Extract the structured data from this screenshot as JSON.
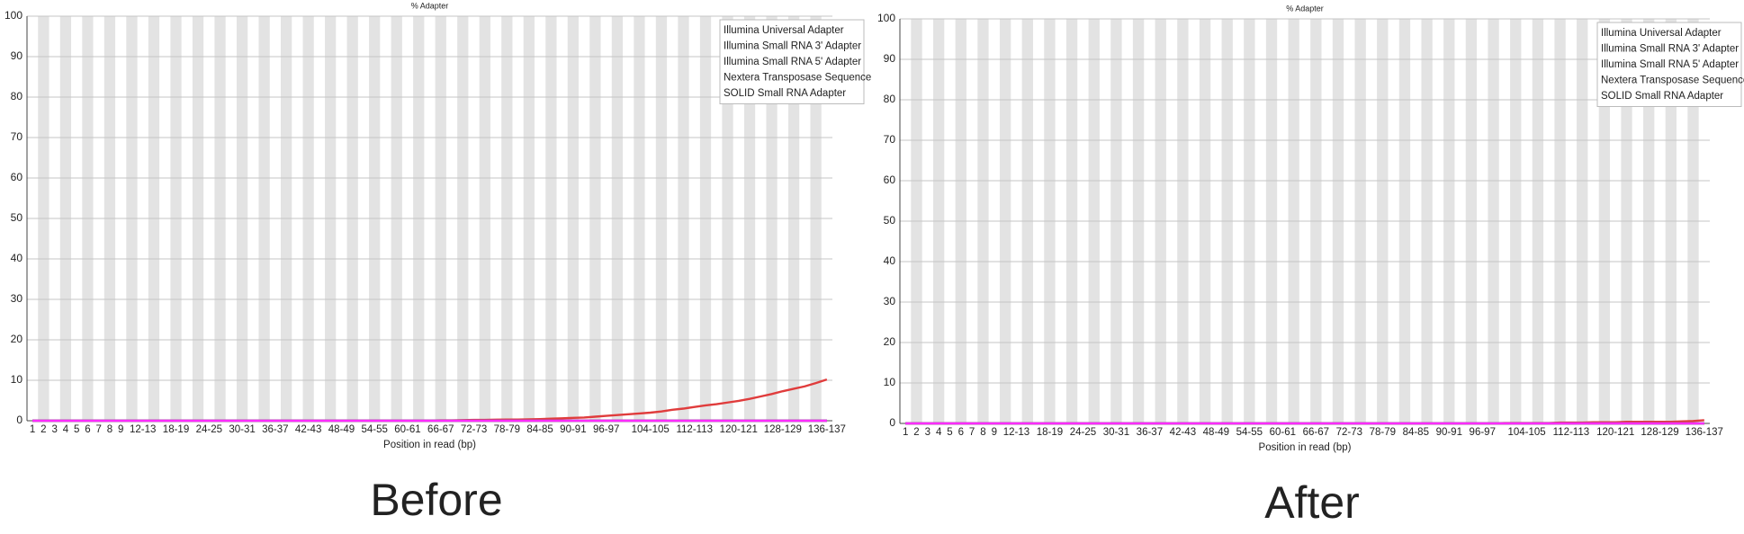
{
  "chart_data": [
    {
      "type": "line",
      "title": "% Adapter",
      "caption": "Before",
      "xlabel": "Position in read (bp)",
      "categories": [
        "1",
        "2",
        "3",
        "4",
        "5",
        "6",
        "7",
        "8",
        "9",
        null,
        "12-13",
        null,
        null,
        "18-19",
        null,
        null,
        "24-25",
        null,
        null,
        "30-31",
        null,
        null,
        "36-37",
        null,
        null,
        "42-43",
        null,
        null,
        "48-49",
        null,
        null,
        "54-55",
        null,
        null,
        "60-61",
        null,
        null,
        "66-67",
        null,
        null,
        "72-73",
        null,
        null,
        "78-79",
        null,
        null,
        "84-85",
        null,
        null,
        "90-91",
        null,
        null,
        "96-97",
        null,
        null,
        null,
        "104-105",
        null,
        null,
        null,
        "112-113",
        null,
        null,
        null,
        "120-121",
        null,
        null,
        null,
        "128-129",
        null,
        null,
        null,
        "136-137"
      ],
      "ylim": [
        0,
        100
      ],
      "yticks": [
        0,
        10,
        20,
        30,
        40,
        50,
        60,
        70,
        80,
        90,
        100
      ],
      "grid": true,
      "legend": "upper right",
      "series": [
        {
          "name": "Illumina Universal Adapter",
          "color": "#e03c3c",
          "values": [
            0,
            0,
            0,
            0,
            0,
            0,
            0,
            0,
            0,
            0,
            0,
            0,
            0,
            0,
            0,
            0,
            0,
            0,
            0,
            0,
            0,
            0,
            0,
            0,
            0,
            0,
            0,
            0,
            0,
            0,
            0,
            0,
            0,
            0,
            0,
            0,
            0.05,
            0.1,
            0.1,
            0.15,
            0.2,
            0.2,
            0.25,
            0.3,
            0.3,
            0.35,
            0.4,
            0.5,
            0.6,
            0.7,
            0.8,
            1.0,
            1.2,
            1.4,
            1.6,
            1.8,
            2.0,
            2.3,
            2.7,
            3.0,
            3.4,
            3.8,
            4.1,
            4.5,
            4.9,
            5.4,
            6.0,
            6.6,
            7.3,
            7.9,
            8.5,
            9.3,
            10.2
          ]
        },
        {
          "name": "Illumina Small RNA 3' Adapter",
          "color": "#1a1aff",
          "values": [
            0,
            0,
            0,
            0,
            0,
            0,
            0,
            0,
            0,
            0,
            0,
            0,
            0,
            0,
            0,
            0,
            0,
            0,
            0,
            0,
            0,
            0,
            0,
            0,
            0,
            0,
            0,
            0,
            0,
            0,
            0,
            0,
            0,
            0,
            0,
            0,
            0,
            0,
            0,
            0,
            0,
            0,
            0,
            0,
            0,
            0,
            0,
            0,
            0,
            0,
            0,
            0,
            0,
            0,
            0,
            0,
            0,
            0,
            0,
            0,
            0,
            0,
            0,
            0,
            0,
            0,
            0,
            0,
            0,
            0,
            0,
            0,
            0
          ]
        },
        {
          "name": "Illumina Small RNA 5' Adapter",
          "color": "#7ccf3c",
          "values": [
            0,
            0,
            0,
            0,
            0,
            0,
            0,
            0,
            0,
            0,
            0,
            0,
            0,
            0,
            0,
            0,
            0,
            0,
            0,
            0,
            0,
            0,
            0,
            0,
            0,
            0,
            0,
            0,
            0,
            0,
            0,
            0,
            0,
            0,
            0,
            0,
            0,
            0,
            0,
            0,
            0,
            0,
            0,
            0,
            0,
            0,
            0,
            0,
            0,
            0,
            0,
            0,
            0,
            0,
            0,
            0,
            0,
            0,
            0,
            0,
            0,
            0,
            0,
            0,
            0,
            0,
            0,
            0,
            0,
            0,
            0,
            0,
            0
          ]
        },
        {
          "name": "Nextera Transposase Sequence",
          "color": "#555555",
          "values": [
            0,
            0,
            0,
            0,
            0,
            0,
            0,
            0,
            0,
            0,
            0,
            0,
            0,
            0,
            0,
            0,
            0,
            0,
            0,
            0,
            0,
            0,
            0,
            0,
            0,
            0,
            0,
            0,
            0,
            0,
            0,
            0,
            0,
            0,
            0,
            0,
            0,
            0,
            0,
            0,
            0,
            0,
            0,
            0,
            0,
            0,
            0,
            0,
            0,
            0,
            0,
            0,
            0,
            0,
            0,
            0,
            0,
            0,
            0,
            0,
            0,
            0,
            0,
            0,
            0,
            0,
            0,
            0,
            0,
            0,
            0,
            0,
            0
          ]
        },
        {
          "name": "SOLID Small RNA Adapter",
          "color": "#ff2cff",
          "values": [
            0,
            0,
            0,
            0,
            0,
            0,
            0,
            0,
            0,
            0,
            0,
            0,
            0,
            0,
            0,
            0,
            0,
            0,
            0,
            0,
            0,
            0,
            0,
            0,
            0,
            0,
            0,
            0,
            0,
            0,
            0,
            0,
            0,
            0,
            0,
            0,
            0,
            0,
            0,
            0,
            0,
            0,
            0,
            0,
            0,
            0,
            0,
            0,
            0,
            0,
            0,
            0,
            0,
            0,
            0,
            0,
            0,
            0,
            0,
            0,
            0,
            0,
            0,
            0,
            0,
            0,
            0,
            0,
            0,
            0,
            0,
            0,
            0
          ]
        }
      ]
    },
    {
      "type": "line",
      "title": "% Adapter",
      "caption": "After",
      "xlabel": "Position in read (bp)",
      "categories": [
        "1",
        "2",
        "3",
        "4",
        "5",
        "6",
        "7",
        "8",
        "9",
        null,
        "12-13",
        null,
        null,
        "18-19",
        null,
        null,
        "24-25",
        null,
        null,
        "30-31",
        null,
        null,
        "36-37",
        null,
        null,
        "42-43",
        null,
        null,
        "48-49",
        null,
        null,
        "54-55",
        null,
        null,
        "60-61",
        null,
        null,
        "66-67",
        null,
        null,
        "72-73",
        null,
        null,
        "78-79",
        null,
        null,
        "84-85",
        null,
        null,
        "90-91",
        null,
        null,
        "96-97",
        null,
        null,
        null,
        "104-105",
        null,
        null,
        null,
        "112-113",
        null,
        null,
        null,
        "120-121",
        null,
        null,
        null,
        "128-129",
        null,
        null,
        null,
        "136-137"
      ],
      "ylim": [
        0,
        100
      ],
      "yticks": [
        0,
        10,
        20,
        30,
        40,
        50,
        60,
        70,
        80,
        90,
        100
      ],
      "grid": true,
      "legend": "upper right",
      "series": [
        {
          "name": "Illumina Universal Adapter",
          "color": "#e03c3c",
          "values": [
            0,
            0,
            0,
            0,
            0,
            0,
            0,
            0,
            0,
            0,
            0,
            0,
            0,
            0,
            0,
            0,
            0,
            0,
            0,
            0,
            0,
            0,
            0,
            0,
            0,
            0,
            0,
            0,
            0,
            0,
            0,
            0,
            0,
            0,
            0,
            0,
            0,
            0,
            0,
            0,
            0,
            0,
            0,
            0,
            0,
            0,
            0,
            0,
            0,
            0,
            0,
            0,
            0,
            0,
            0.1,
            0.1,
            0.1,
            0.1,
            0.1,
            0.2,
            0.2,
            0.2,
            0.3,
            0.3,
            0.3,
            0.4,
            0.4,
            0.4,
            0.4,
            0.4,
            0.5,
            0.6,
            0.8
          ]
        },
        {
          "name": "Illumina Small RNA 3' Adapter",
          "color": "#1a1aff",
          "values": [
            0,
            0,
            0,
            0,
            0,
            0,
            0,
            0,
            0,
            0,
            0,
            0,
            0,
            0,
            0,
            0,
            0,
            0,
            0,
            0,
            0,
            0,
            0,
            0,
            0,
            0,
            0,
            0,
            0,
            0,
            0,
            0,
            0,
            0,
            0,
            0,
            0,
            0,
            0,
            0,
            0,
            0,
            0,
            0,
            0,
            0,
            0,
            0,
            0,
            0,
            0,
            0,
            0,
            0,
            0,
            0,
            0,
            0,
            0,
            0,
            0,
            0,
            0,
            0,
            0,
            0,
            0,
            0,
            0,
            0,
            0,
            0,
            0
          ]
        },
        {
          "name": "Illumina Small RNA 5' Adapter",
          "color": "#7ccf3c",
          "values": [
            0,
            0,
            0,
            0,
            0,
            0,
            0,
            0,
            0,
            0,
            0,
            0,
            0,
            0,
            0,
            0,
            0,
            0,
            0,
            0,
            0,
            0,
            0,
            0,
            0,
            0,
            0,
            0,
            0,
            0,
            0,
            0,
            0,
            0,
            0,
            0,
            0,
            0,
            0,
            0,
            0,
            0,
            0,
            0,
            0,
            0,
            0,
            0,
            0,
            0,
            0,
            0,
            0,
            0,
            0,
            0,
            0,
            0,
            0,
            0,
            0,
            0,
            0,
            0,
            0,
            0,
            0,
            0,
            0,
            0,
            0,
            0,
            0
          ]
        },
        {
          "name": "Nextera Transposase Sequence",
          "color": "#555555",
          "values": [
            0,
            0,
            0,
            0,
            0,
            0,
            0,
            0,
            0,
            0,
            0,
            0,
            0,
            0,
            0,
            0,
            0,
            0,
            0,
            0,
            0,
            0,
            0,
            0,
            0,
            0,
            0,
            0,
            0,
            0,
            0,
            0,
            0,
            0,
            0,
            0,
            0,
            0,
            0,
            0,
            0,
            0,
            0,
            0,
            0,
            0,
            0,
            0,
            0,
            0,
            0,
            0,
            0,
            0,
            0,
            0,
            0,
            0,
            0,
            0,
            0,
            0,
            0,
            0,
            0,
            0,
            0,
            0,
            0,
            0,
            0,
            0,
            0
          ]
        },
        {
          "name": "SOLID Small RNA Adapter",
          "color": "#ff2cff",
          "values": [
            0,
            0,
            0,
            0,
            0,
            0,
            0,
            0,
            0,
            0,
            0,
            0,
            0,
            0,
            0,
            0,
            0,
            0,
            0,
            0,
            0,
            0,
            0,
            0,
            0,
            0,
            0,
            0,
            0,
            0,
            0,
            0,
            0,
            0,
            0,
            0,
            0,
            0,
            0,
            0,
            0,
            0,
            0,
            0,
            0,
            0,
            0,
            0,
            0,
            0,
            0,
            0,
            0,
            0,
            0,
            0,
            0,
            0,
            0,
            0,
            0,
            0,
            0,
            0,
            0,
            0,
            0,
            0,
            0,
            0,
            0,
            0,
            0
          ]
        }
      ]
    }
  ]
}
